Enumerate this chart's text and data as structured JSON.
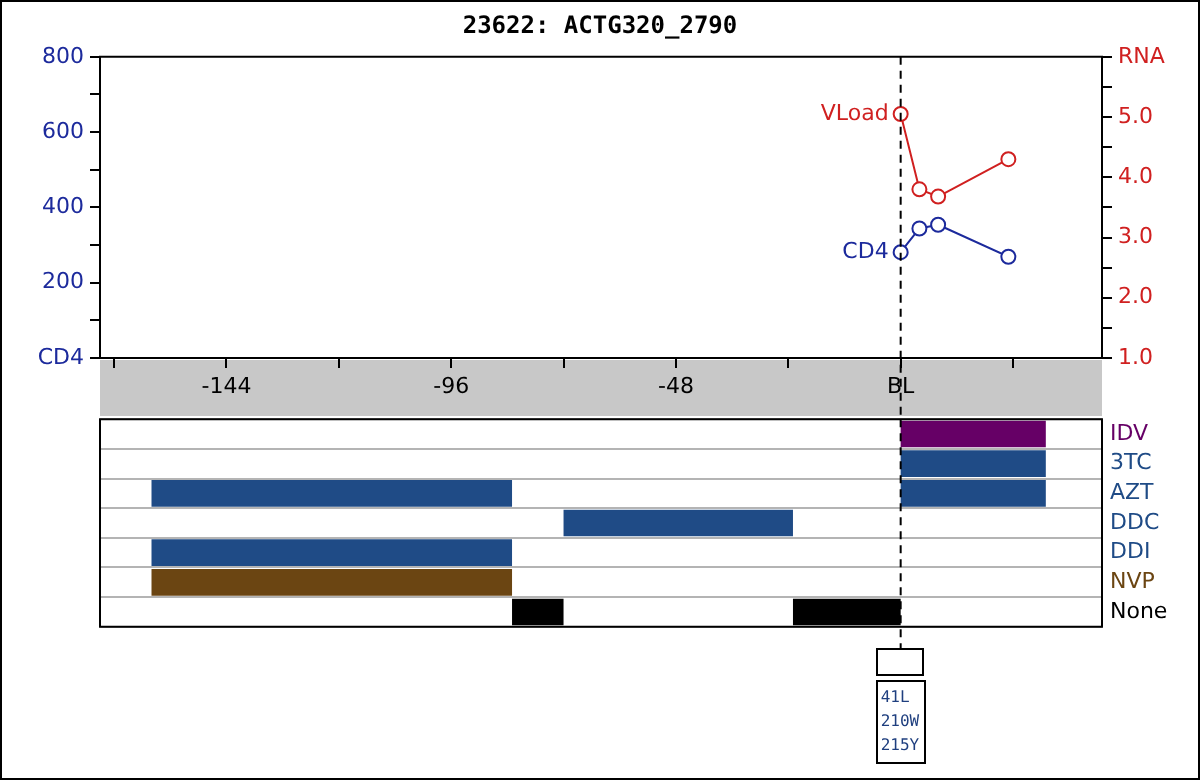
{
  "chart_data": [
    {
      "type": "line",
      "title": "23622: ACTG320_2790",
      "xlim": [
        -171,
        43
      ],
      "xticks": [
        {
          "value": -168,
          "label": null
        },
        -144,
        {
          "value": -120,
          "label": null
        },
        -96,
        {
          "value": -72,
          "label": null
        },
        -48,
        {
          "value": -24,
          "label": null
        },
        {
          "value": 0,
          "label": "BL"
        },
        {
          "value": 24,
          "label": null
        }
      ],
      "ylim": [
        0,
        800
      ],
      "yticks": [
        {
          "value": 0,
          "label": "CD4"
        },
        {
          "value": 100,
          "label": null
        },
        200,
        {
          "value": 300,
          "label": null
        },
        400,
        {
          "value": 500,
          "label": null
        },
        600,
        {
          "value": 700,
          "label": null
        },
        800
      ],
      "y2lim": [
        1,
        6
      ],
      "y2ticks": [
        {
          "value": 1,
          "label": "1.0"
        },
        {
          "value": 1.5,
          "label": null
        },
        {
          "value": 2,
          "label": "2.0"
        },
        {
          "value": 2.5,
          "label": null
        },
        {
          "value": 3,
          "label": "3.0"
        },
        {
          "value": 3.5,
          "label": null
        },
        {
          "value": 4,
          "label": "4.0"
        },
        {
          "value": 4.5,
          "label": null
        },
        {
          "value": 5,
          "label": "5.0"
        },
        {
          "value": 5.5,
          "label": null
        },
        {
          "value": 6,
          "label": "RNA"
        }
      ],
      "series": [
        {
          "name": "CD4",
          "color": "#1c2a9c",
          "x": [
            0,
            4,
            8,
            23
          ],
          "values": [
            281,
            344,
            354,
            269
          ]
        },
        {
          "name": "VLoad",
          "color": "#d02020",
          "axis": "y2",
          "x": [
            0,
            4,
            8,
            23
          ],
          "values": [
            5.05,
            3.8,
            3.68,
            4.3
          ]
        }
      ],
      "marker": "circle",
      "legend": false,
      "grid": false,
      "ref_lines": [
        {
          "axis": "x",
          "value": 0,
          "line_style": "dashed",
          "color": "#000000"
        }
      ]
    },
    {
      "type": "bar",
      "orientation": "horizontal",
      "categories": [
        "IDV",
        "3TC",
        "AZT",
        "DDC",
        "DDI",
        "NVP",
        "None"
      ],
      "xlim": [
        -171,
        43
      ],
      "tick_labels": "y",
      "grid": "y",
      "legend": false,
      "series": [
        {
          "values": [
            null,
            null,
            77,
            null,
            77,
            77,
            null
          ],
          "base": [
            null,
            null,
            -160,
            null,
            -160,
            -160,
            null
          ],
          "colors": [
            null,
            null,
            "#1f4b86",
            null,
            "#1f4b86",
            "#6b4512",
            null
          ]
        },
        {
          "values": [
            null,
            null,
            null,
            null,
            null,
            null,
            11
          ],
          "base": [
            null,
            null,
            null,
            null,
            null,
            null,
            -83
          ],
          "colors": [
            null,
            null,
            null,
            null,
            null,
            null,
            "#000000"
          ]
        },
        {
          "values": [
            null,
            null,
            null,
            49,
            null,
            null,
            null
          ],
          "base": [
            null,
            null,
            null,
            -72,
            null,
            null,
            null
          ],
          "colors": [
            null,
            null,
            null,
            "#1f4b86",
            null,
            null,
            null
          ]
        },
        {
          "values": [
            null,
            null,
            null,
            null,
            null,
            null,
            23
          ],
          "base": [
            null,
            null,
            null,
            null,
            null,
            null,
            -23
          ],
          "colors": [
            null,
            null,
            null,
            null,
            null,
            null,
            "#000000"
          ]
        },
        {
          "values": [
            31,
            31,
            31,
            null,
            null,
            null,
            null
          ],
          "base": [
            0,
            0,
            0,
            null,
            null,
            null,
            null
          ],
          "colors": [
            "#660066",
            "#1f4b86",
            "#1f4b86",
            null,
            null,
            null,
            null
          ]
        }
      ],
      "ref_lines": [
        {
          "axis": "x",
          "value": 0,
          "line_style": "dashed",
          "color": "#000000"
        }
      ],
      "annotations": [
        "41L\n210W\n215Y"
      ]
    }
  ]
}
